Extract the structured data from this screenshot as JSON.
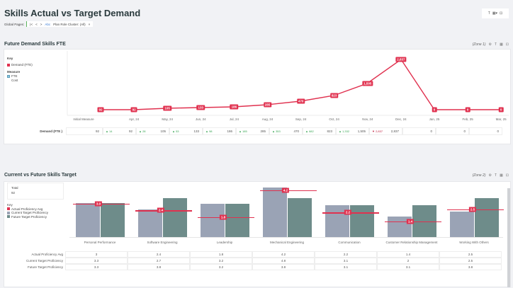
{
  "header": {
    "title": "Skills Actual vs Target Demand",
    "global_pages_label": "Global Pages:",
    "nav": [
      "|<",
      "<",
      ">"
    ],
    "filter_icon": "Abc",
    "filter_label": "Plan Role Cluster: (All)",
    "filter_close": "×",
    "toolbar": {
      "filter_icon": "T",
      "view_icon": "▦▾",
      "expand_icon": "⊡"
    }
  },
  "section1": {
    "title": "Future Demand Skills FTE",
    "zone": "(Zone 1)",
    "key_title": "Key",
    "key_items": [
      {
        "label": "Demand (FTE)",
        "color": "#e0314f"
      }
    ],
    "measure_title": "Measure",
    "measures": [
      {
        "label": "FTE",
        "checked": true
      },
      {
        "label": "Cost",
        "checked": false
      }
    ],
    "row_label": "Demand (FTE )",
    "table": [
      {
        "value": "92",
        "delta": "",
        "dir": ""
      },
      {
        "value": "92",
        "delta": "14",
        "dir": "up"
      },
      {
        "value": "105",
        "delta": "28",
        "dir": "up"
      },
      {
        "value": "133",
        "delta": "53",
        "dir": "up"
      },
      {
        "value": "186",
        "delta": "98",
        "dir": "up"
      },
      {
        "value": "285",
        "delta": "185",
        "dir": "up"
      },
      {
        "value": "470",
        "delta": "353",
        "dir": "up"
      },
      {
        "value": "823",
        "delta": "682",
        "dir": "up"
      },
      {
        "value": "1,505",
        "delta": "1,332",
        "dir": "up"
      },
      {
        "value": "2,837",
        "delta": "2,837",
        "dir": "down"
      },
      {
        "value": "0",
        "delta": "",
        "dir": ""
      },
      {
        "value": "0",
        "delta": "",
        "dir": ""
      },
      {
        "value": "0",
        "delta": "",
        "dir": ""
      }
    ]
  },
  "section2": {
    "title": "Current vs Future Skills Target",
    "zone": "(Zone 2)",
    "total_label": "Total",
    "total_value": "92",
    "key_title": "Key",
    "key_items": [
      {
        "label": "Actual Proficiency Avg",
        "color": "#e0314f"
      },
      {
        "label": "Current Target Proficiency",
        "color": "#9aa3b5"
      },
      {
        "label": "Future Target Proficiency",
        "color": "#6e8c8a"
      }
    ],
    "row_labels": [
      "Actual Proficiency Avg",
      "Current Target Proficiency",
      "Future Target Proficiency"
    ]
  },
  "chart_data": [
    {
      "type": "line",
      "title": "Future Demand Skills FTE",
      "categories": [
        "Initial Measure",
        "Apr, 24",
        "May, 24",
        "Jun, 24",
        "Jul, 24",
        "Aug, 24",
        "Sep, 24",
        "Oct, 24",
        "Nov, 24",
        "Dec, 24",
        "Jan, 25",
        "Feb, 25",
        "Mar, 25"
      ],
      "series": [
        {
          "name": "Demand (FTE)",
          "values": [
            92,
            92,
            105,
            133,
            186,
            285,
            470,
            823,
            1505,
            2837,
            0,
            0,
            0
          ],
          "labels": [
            "92",
            "92",
            "105",
            "133",
            "186",
            "285",
            "470",
            "823",
            "1,505",
            "2,837",
            "0",
            "0",
            "0"
          ]
        }
      ],
      "color": "#e0314f",
      "grid": false
    },
    {
      "type": "bar",
      "title": "Current vs Future Skills Target",
      "categories": [
        "Personal Performance",
        "Software Engineering",
        "Leadership",
        "Mechanical Engineering",
        "Communication",
        "Customer Relationship Management",
        "Working With Others"
      ],
      "series": [
        {
          "name": "Actual Proficiency Avg",
          "values": [
            3,
            2.4,
            1.8,
            4.2,
            2.2,
            1.4,
            2.5
          ],
          "labels": [
            "3.0",
            "2.4",
            "1.8",
            "4.2",
            "2.2",
            "1.4",
            "2.5"
          ],
          "color": "#e0314f"
        },
        {
          "name": "Current Target Proficiency",
          "values": [
            3.3,
            2.7,
            3.2,
            4.8,
            3.1,
            2,
            2.5
          ],
          "color": "#9aa3b5"
        },
        {
          "name": "Future Target Proficiency",
          "values": [
            3.3,
            3.8,
            3.2,
            3.8,
            3.1,
            3.1,
            3.8
          ],
          "color": "#6e8c8a"
        }
      ],
      "ylim": [
        0,
        5
      ]
    }
  ]
}
